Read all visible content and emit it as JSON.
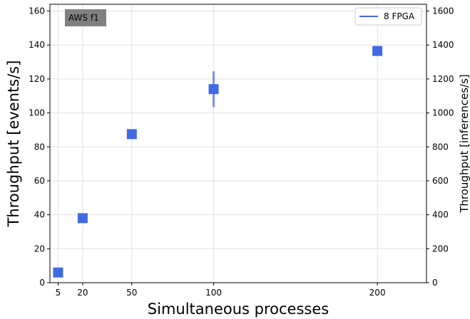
{
  "chart_data": {
    "type": "scatter",
    "xlabel": "Simultaneous processes",
    "ylabel": "Throughput [events/s]",
    "ylabel_right": "Throughput [inferences/s]",
    "xlim": [
      0,
      230
    ],
    "ylim": [
      0,
      164
    ],
    "ylim_right": [
      0,
      1640
    ],
    "x_ticks": [
      5,
      20,
      50,
      100,
      200
    ],
    "y_ticks": [
      0,
      20,
      40,
      60,
      80,
      100,
      120,
      140,
      160
    ],
    "y_ticks_right": [
      0,
      200,
      400,
      600,
      800,
      1000,
      1200,
      1400,
      1600
    ],
    "grid": true,
    "legend_position": "top-right",
    "annotation": "AWS f1",
    "series": [
      {
        "name": "8 FPGA",
        "color": "#4169e1",
        "marker": "square",
        "x": [
          5,
          20,
          50,
          100,
          200
        ],
        "y": [
          6,
          38,
          87.5,
          114,
          136.5
        ],
        "yerr": [
          0.5,
          0.5,
          0.5,
          10.5,
          2
        ]
      }
    ]
  }
}
